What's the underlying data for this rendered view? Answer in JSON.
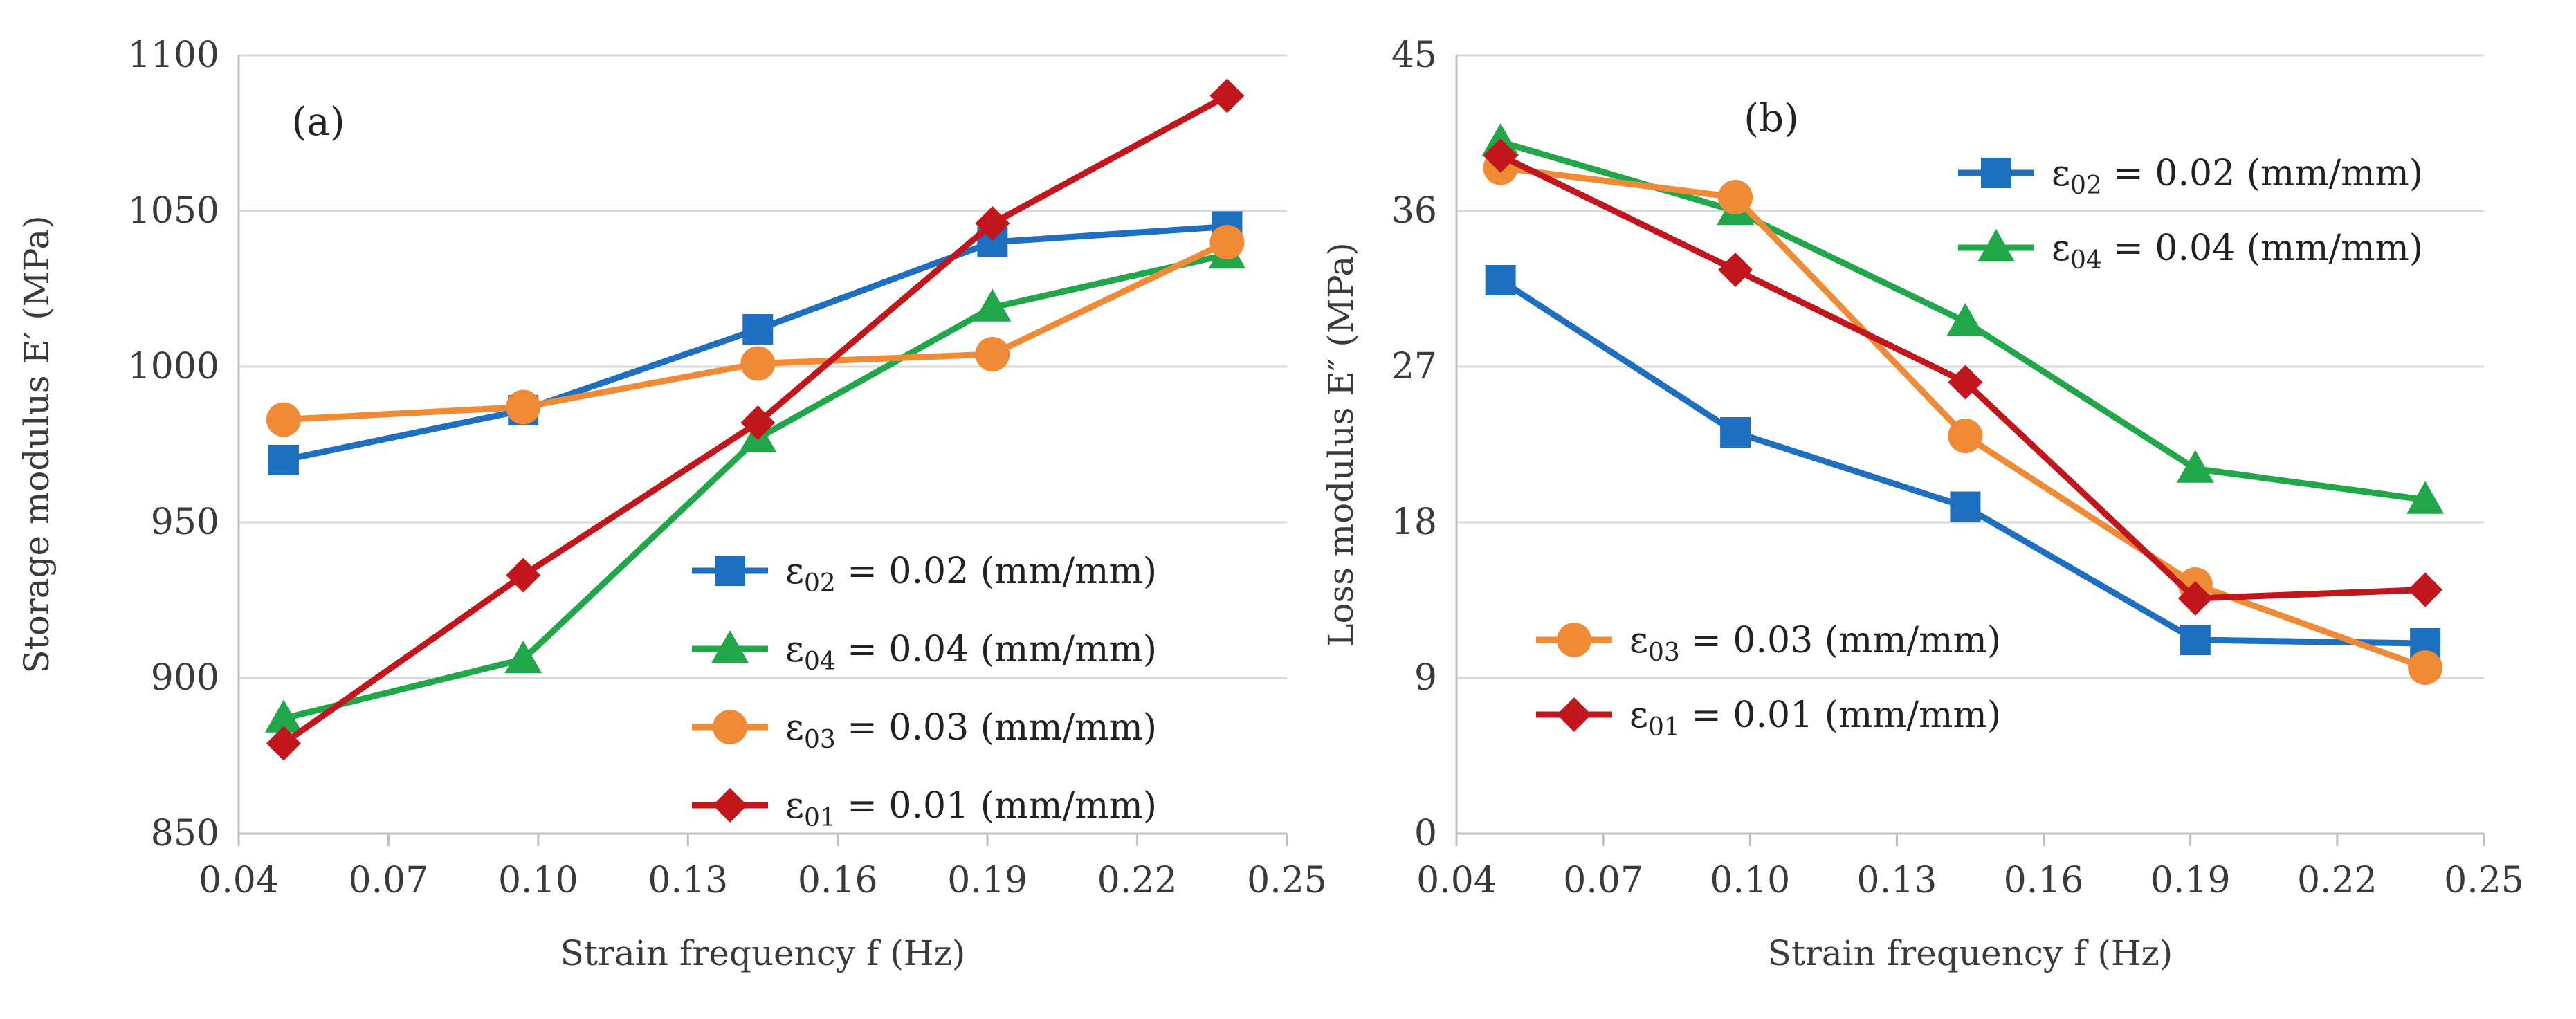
{
  "chart_data": [
    {
      "type": "line",
      "panel_label": "(a)",
      "title": "",
      "xlabel": "Strain frequency  f  (Hz)",
      "ylabel": "Storage modulus E′ (MPa)",
      "xlim": [
        0.04,
        0.25
      ],
      "ylim": [
        850,
        1100
      ],
      "xticks": [
        "0.04",
        "0.07",
        "0.10",
        "0.13",
        "0.16",
        "0.19",
        "0.22",
        "0.25"
      ],
      "yticks": [
        "850",
        "900",
        "950",
        "1000",
        "1050",
        "1100"
      ],
      "legend_placement": "bottom-right",
      "series": [
        {
          "name": "ε02 = 0.02 (mm/mm)",
          "sub": "02",
          "value_text": " = 0.02 (mm/mm)",
          "color": "#1f6fc0",
          "marker": "square",
          "x": [
            0.049,
            0.097,
            0.144,
            0.191,
            0.238
          ],
          "values": [
            970,
            986,
            1012,
            1040,
            1045
          ]
        },
        {
          "name": "ε04 = 0.04 (mm/mm)",
          "sub": "04",
          "value_text": " = 0.04 (mm/mm)",
          "color": "#21a64a",
          "marker": "triangle",
          "x": [
            0.049,
            0.097,
            0.144,
            0.191,
            0.238
          ],
          "values": [
            887,
            906,
            977,
            1019,
            1036
          ]
        },
        {
          "name": "ε03 = 0.03 (mm/mm)",
          "sub": "03",
          "value_text": " = 0.03 (mm/mm)",
          "color": "#ef8a36",
          "marker": "circle",
          "x": [
            0.049,
            0.097,
            0.144,
            0.191,
            0.238
          ],
          "values": [
            983,
            987,
            1001,
            1004,
            1040
          ]
        },
        {
          "name": "ε01 = 0.01 (mm/mm)",
          "sub": "01",
          "value_text": " = 0.01 (mm/mm)",
          "color": "#c0161c",
          "marker": "diamond",
          "x": [
            0.049,
            0.097,
            0.144,
            0.191,
            0.238
          ],
          "values": [
            879,
            933,
            982,
            1046,
            1087
          ]
        }
      ]
    },
    {
      "type": "line",
      "panel_label": "(b)",
      "title": "",
      "xlabel": "Strain frequency  f  (Hz)",
      "ylabel": "Loss modulus E″ (MPa)",
      "xlim": [
        0.04,
        0.25
      ],
      "ylim": [
        0,
        45
      ],
      "xticks": [
        "0.04",
        "0.07",
        "0.10",
        "0.13",
        "0.16",
        "0.19",
        "0.22",
        "0.25"
      ],
      "yticks": [
        "0",
        "9",
        "18",
        "27",
        "36",
        "45"
      ],
      "legend_placement": "split: top-right (ε02, ε04), bottom-left (ε03, ε01)",
      "series": [
        {
          "name": "ε02 = 0.02 (mm/mm)",
          "sub": "02",
          "value_text": " = 0.02 (mm/mm)",
          "color": "#1f6fc0",
          "marker": "square",
          "x": [
            0.049,
            0.097,
            0.144,
            0.191,
            0.238
          ],
          "values": [
            32.0,
            23.2,
            18.9,
            11.2,
            11.0
          ]
        },
        {
          "name": "ε04 = 0.04 (mm/mm)",
          "sub": "04",
          "value_text": " = 0.04 (mm/mm)",
          "color": "#21a64a",
          "marker": "triangle",
          "x": [
            0.049,
            0.097,
            0.144,
            0.191,
            0.238
          ],
          "values": [
            40.0,
            36.0,
            29.6,
            21.1,
            19.3
          ]
        },
        {
          "name": "ε03 = 0.03 (mm/mm)",
          "sub": "03",
          "value_text": " = 0.03 (mm/mm)",
          "color": "#ef8a36",
          "marker": "circle",
          "x": [
            0.049,
            0.097,
            0.144,
            0.191,
            0.238
          ],
          "values": [
            38.5,
            36.8,
            23.0,
            14.4,
            9.6
          ]
        },
        {
          "name": "ε01 = 0.01 (mm/mm)",
          "sub": "01",
          "value_text": " = 0.01 (mm/mm)",
          "color": "#c0161c",
          "marker": "diamond",
          "x": [
            0.049,
            0.097,
            0.144,
            0.191,
            0.238
          ],
          "values": [
            39.2,
            32.6,
            26.1,
            13.6,
            14.1
          ]
        }
      ]
    }
  ]
}
